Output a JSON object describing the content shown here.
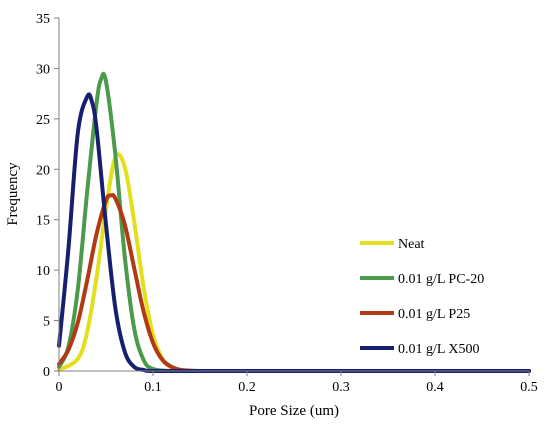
{
  "chart_data": {
    "type": "line",
    "xlabel": "Pore Size (um)",
    "ylabel": "Frequency",
    "xlim": [
      0,
      0.5
    ],
    "ylim": [
      0,
      35
    ],
    "x_ticks": [
      "0",
      "0.1",
      "0.2",
      "0.3",
      "0.4",
      "0.5"
    ],
    "y_ticks": [
      "0",
      "5",
      "10",
      "15",
      "20",
      "25",
      "30",
      "35"
    ],
    "grid": false,
    "legend_position": "right",
    "series": [
      {
        "name": "Neat",
        "color": "#e3df1c",
        "x": [
          0,
          0.02,
          0.03,
          0.04,
          0.05,
          0.06,
          0.07,
          0.08,
          0.09,
          0.1,
          0.11,
          0.12,
          0.13,
          0.15,
          0.2,
          0.3,
          0.4,
          0.5
        ],
        "y": [
          0.1,
          1.2,
          3.9,
          9.3,
          16.1,
          21.2,
          20.2,
          14.8,
          8.3,
          3.6,
          1.2,
          0.3,
          0.1,
          0,
          0,
          0,
          0,
          0
        ]
      },
      {
        "name": "0.01 g/L PC-20",
        "color": "#4c9a4c",
        "x": [
          0,
          0.01,
          0.02,
          0.03,
          0.04,
          0.045,
          0.05,
          0.06,
          0.07,
          0.08,
          0.09,
          0.1,
          0.12,
          0.15,
          0.2,
          0.3,
          0.4,
          0.5
        ],
        "y": [
          0.4,
          2.4,
          8.1,
          17.8,
          26.6,
          29.0,
          28.7,
          21.4,
          11.3,
          4.2,
          1.1,
          0.2,
          0,
          0,
          0,
          0,
          0,
          0
        ]
      },
      {
        "name": "0.01 g/L P25",
        "color": "#b13a14",
        "x": [
          0,
          0.01,
          0.02,
          0.03,
          0.04,
          0.05,
          0.055,
          0.06,
          0.07,
          0.08,
          0.09,
          0.1,
          0.11,
          0.12,
          0.13,
          0.15,
          0.2,
          0.3,
          0.4,
          0.5
        ],
        "y": [
          0.7,
          2.1,
          4.8,
          9.0,
          13.6,
          16.9,
          17.4,
          17.1,
          14.5,
          10.2,
          5.9,
          2.8,
          1.1,
          0.4,
          0.1,
          0,
          0,
          0,
          0,
          0
        ]
      },
      {
        "name": "0.01 g/L X500",
        "color": "#16206e",
        "x": [
          0,
          0.01,
          0.02,
          0.03,
          0.035,
          0.04,
          0.05,
          0.06,
          0.07,
          0.08,
          0.09,
          0.1,
          0.15,
          0.2,
          0.3,
          0.4,
          0.5
        ],
        "y": [
          2.5,
          12.1,
          23.6,
          27.2,
          26.7,
          24.0,
          14.5,
          6.2,
          1.9,
          0.4,
          0.1,
          0,
          0,
          0,
          0,
          0,
          0
        ]
      }
    ]
  }
}
